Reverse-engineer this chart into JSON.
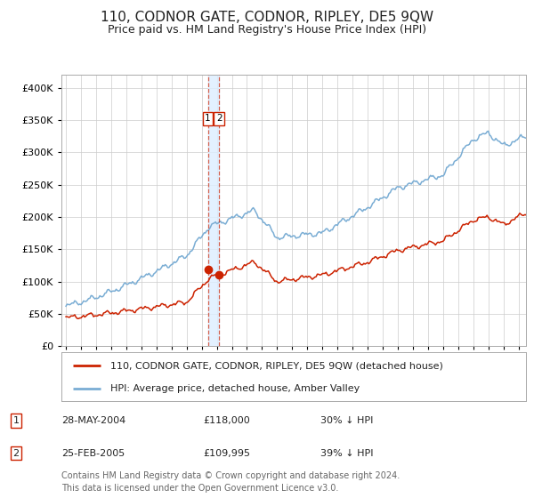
{
  "title": "110, CODNOR GATE, CODNOR, RIPLEY, DE5 9QW",
  "subtitle": "Price paid vs. HM Land Registry's House Price Index (HPI)",
  "title_fontsize": 11,
  "subtitle_fontsize": 9,
  "xlim": [
    1994.7,
    2025.5
  ],
  "ylim": [
    0,
    420000
  ],
  "yticks": [
    0,
    50000,
    100000,
    150000,
    200000,
    250000,
    300000,
    350000,
    400000
  ],
  "xticks": [
    1995,
    1996,
    1997,
    1998,
    1999,
    2000,
    2001,
    2002,
    2003,
    2004,
    2005,
    2006,
    2007,
    2008,
    2009,
    2010,
    2011,
    2012,
    2013,
    2014,
    2015,
    2016,
    2017,
    2018,
    2019,
    2020,
    2021,
    2022,
    2023,
    2024,
    2025
  ],
  "hpi_color": "#7aadd4",
  "price_color": "#cc2200",
  "marker_color": "#cc2200",
  "vline_color": "#cc2200",
  "vband_color": "#ddeeff",
  "grid_color": "#cccccc",
  "bg_color": "#ffffff",
  "legend_box_color": "#cc2200",
  "transaction1": {
    "date_num": 2004.41,
    "price": 118000,
    "label": "1",
    "date_str": "28-MAY-2004",
    "pct": "30% ↓ HPI"
  },
  "transaction2": {
    "date_num": 2005.15,
    "price": 109995,
    "label": "2",
    "date_str": "25-FEB-2005",
    "pct": "39% ↓ HPI"
  },
  "legend_line1": "110, CODNOR GATE, CODNOR, RIPLEY, DE5 9QW (detached house)",
  "legend_line2": "HPI: Average price, detached house, Amber Valley",
  "table_row1": [
    "1",
    "28-MAY-2004",
    "£118,000",
    "30% ↓ HPI"
  ],
  "table_row2": [
    "2",
    "25-FEB-2005",
    "£109,995",
    "39% ↓ HPI"
  ],
  "footer": "Contains HM Land Registry data © Crown copyright and database right 2024.\nThis data is licensed under the Open Government Licence v3.0.",
  "footer_fontsize": 7
}
